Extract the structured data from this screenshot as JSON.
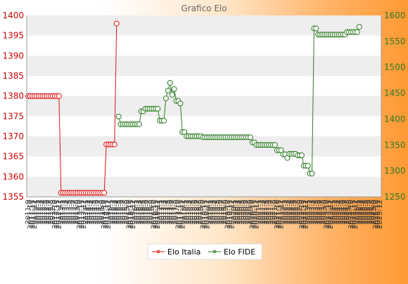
{
  "chart_data": {
    "type": "line",
    "title": "Grafico Elo",
    "xlabel": "",
    "ylabel_left": "",
    "ylabel_right": "",
    "y_left": {
      "min": 1355,
      "max": 1400,
      "ticks": [
        1355,
        1360,
        1365,
        1370,
        1375,
        1380,
        1385,
        1390,
        1395,
        1400
      ]
    },
    "y_right": {
      "min": 1250,
      "max": 1600,
      "ticks": [
        1250,
        1300,
        1350,
        1400,
        1450,
        1500,
        1550,
        1600
      ]
    },
    "grid": "horizontal bands",
    "legend_position": "bottom",
    "colors": {
      "italia": "#dd1111",
      "fide": "#2d7a22",
      "axis_left": "#cc0000",
      "axis_right": "#2d7a22",
      "band": "#eeeeee",
      "title": "#666666"
    },
    "x_labels": [
      "2011-9",
      "2011-10",
      "2011-11",
      "2011-12",
      "2012-1",
      "2012-2",
      "2012-3",
      "2012-4",
      "2012-5",
      "2012-6",
      "2012-7",
      "2012-8",
      "2012-9",
      "2012-10",
      "2012-11",
      "2012-12",
      "2013-1",
      "2013-2",
      "2013-3",
      "2013-4",
      "2013-5",
      "2013-6",
      "2013-7",
      "2013-8",
      "2013-9",
      "2013-10",
      "2013-11",
      "2013-12",
      "2014-1",
      "2014-2",
      "2014-3",
      "2014-4",
      "2014-5",
      "2014-6",
      "2014-7",
      "2014-8",
      "2014-9",
      "2014-10",
      "2014-11",
      "2014-12",
      "2015-1",
      "2015-2",
      "2015-3",
      "2015-4",
      "2015-5",
      "2015-6",
      "2015-7",
      "2015-8",
      "2015-9",
      "2015-10",
      "2015-11",
      "2015-12",
      "2016-1",
      "2016-2",
      "2016-3",
      "2016-4",
      "2016-5",
      "2016-6",
      "2016-7",
      "2016-8",
      "2016-9",
      "2016-10",
      "2016-11",
      "2016-12",
      "2017-1",
      "2017-2",
      "2017-3",
      "2017-4",
      "2017-5",
      "2017-6",
      "2017-7",
      "2017-8",
      "2017-9",
      "2017-10",
      "2017-11",
      "2017-12",
      "2018-1",
      "2018-2",
      "2018-3",
      "2018-4",
      "2018-5",
      "2018-6",
      "2018-7",
      "2018-8",
      "2018-9",
      "2018-10",
      "2018-11",
      "2018-12",
      "2019-1",
      "2019-2",
      "2019-3",
      "2019-4",
      "2019-5",
      "2019-6",
      "2019-7",
      "2019-8",
      "2019-9",
      "2019-10",
      "2019-11",
      "2019-12",
      "2020-1",
      "2020-2",
      "2020-3",
      "2020-4",
      "2020-5",
      "2020-6",
      "2020-7",
      "2020-8",
      "2020-9",
      "2020-10",
      "2020-11",
      "2020-12",
      "2021-1",
      "2021-2",
      "2021-3",
      "2021-4",
      "2021-5",
      "2021-6",
      "2021-7",
      "2021-8",
      "2021-9",
      "2021-10",
      "2021-11",
      "2021-12",
      "2022-1",
      "2022-2",
      "2022-3",
      "2022-4",
      "2022-5",
      "2022-6",
      "2022-7",
      "2022-8",
      "2022-9",
      "2022-10",
      "2022-11",
      "2022-12",
      "2023-1",
      "2023-2",
      "2023-3",
      "2023-4",
      "2023-5",
      "2023-6",
      "2023-7",
      "2023-8",
      "2023-9",
      "2023-10",
      "2023-11",
      "2023-12",
      "2024-1",
      "2024-2",
      "2024-3",
      "2024-4",
      "2024-5",
      "2024-6",
      "2024-7",
      "2024-8",
      "2024-9",
      "2024-10",
      "2024-11",
      "2024-12",
      "2025-1",
      "2025-2",
      "2025-3",
      "2025-4",
      "2025-5",
      "2025-6",
      "2025-7",
      "2025-8",
      "2025-9",
      "2025-10",
      "2025-11",
      "2025-12"
    ],
    "series": [
      {
        "name": "Elo Italia",
        "axis": "left",
        "runs": [
          {
            "from": 0,
            "to": 15,
            "value": 1380
          },
          {
            "from": 16,
            "to": 37,
            "value": 1356
          },
          {
            "from": 38,
            "to": 42,
            "value": 1368
          },
          {
            "from": 43,
            "to": 43,
            "value": 1398
          }
        ]
      },
      {
        "name": "Elo FIDE",
        "axis": "right",
        "runs": [
          {
            "from": 44,
            "to": 44,
            "value": 1405
          },
          {
            "from": 45,
            "to": 54,
            "value": 1390
          },
          {
            "from": 55,
            "to": 56,
            "value": 1415
          },
          {
            "from": 57,
            "to": 63,
            "value": 1420
          },
          {
            "from": 64,
            "to": 66,
            "value": 1397
          },
          {
            "from": 67,
            "to": 67,
            "value": 1440
          },
          {
            "from": 68,
            "to": 68,
            "value": 1455
          },
          {
            "from": 69,
            "to": 69,
            "value": 1470
          },
          {
            "from": 70,
            "to": 70,
            "value": 1447
          },
          {
            "from": 71,
            "to": 71,
            "value": 1458
          },
          {
            "from": 72,
            "to": 73,
            "value": 1435
          },
          {
            "from": 74,
            "to": 74,
            "value": 1430
          },
          {
            "from": 75,
            "to": 76,
            "value": 1375
          },
          {
            "from": 77,
            "to": 84,
            "value": 1367
          },
          {
            "from": 85,
            "to": 108,
            "value": 1365
          },
          {
            "from": 109,
            "to": 110,
            "value": 1355
          },
          {
            "from": 111,
            "to": 120,
            "value": 1350
          },
          {
            "from": 121,
            "to": 123,
            "value": 1340
          },
          {
            "from": 124,
            "to": 125,
            "value": 1332
          },
          {
            "from": 126,
            "to": 126,
            "value": 1325
          },
          {
            "from": 127,
            "to": 130,
            "value": 1333
          },
          {
            "from": 131,
            "to": 133,
            "value": 1330
          },
          {
            "from": 134,
            "to": 136,
            "value": 1310
          },
          {
            "from": 137,
            "to": 138,
            "value": 1295
          },
          {
            "from": 139,
            "to": 140,
            "value": 1575
          },
          {
            "from": 141,
            "to": 154,
            "value": 1563
          },
          {
            "from": 155,
            "to": 160,
            "value": 1568
          },
          {
            "from": 161,
            "to": 161,
            "value": 1578
          }
        ]
      }
    ]
  }
}
